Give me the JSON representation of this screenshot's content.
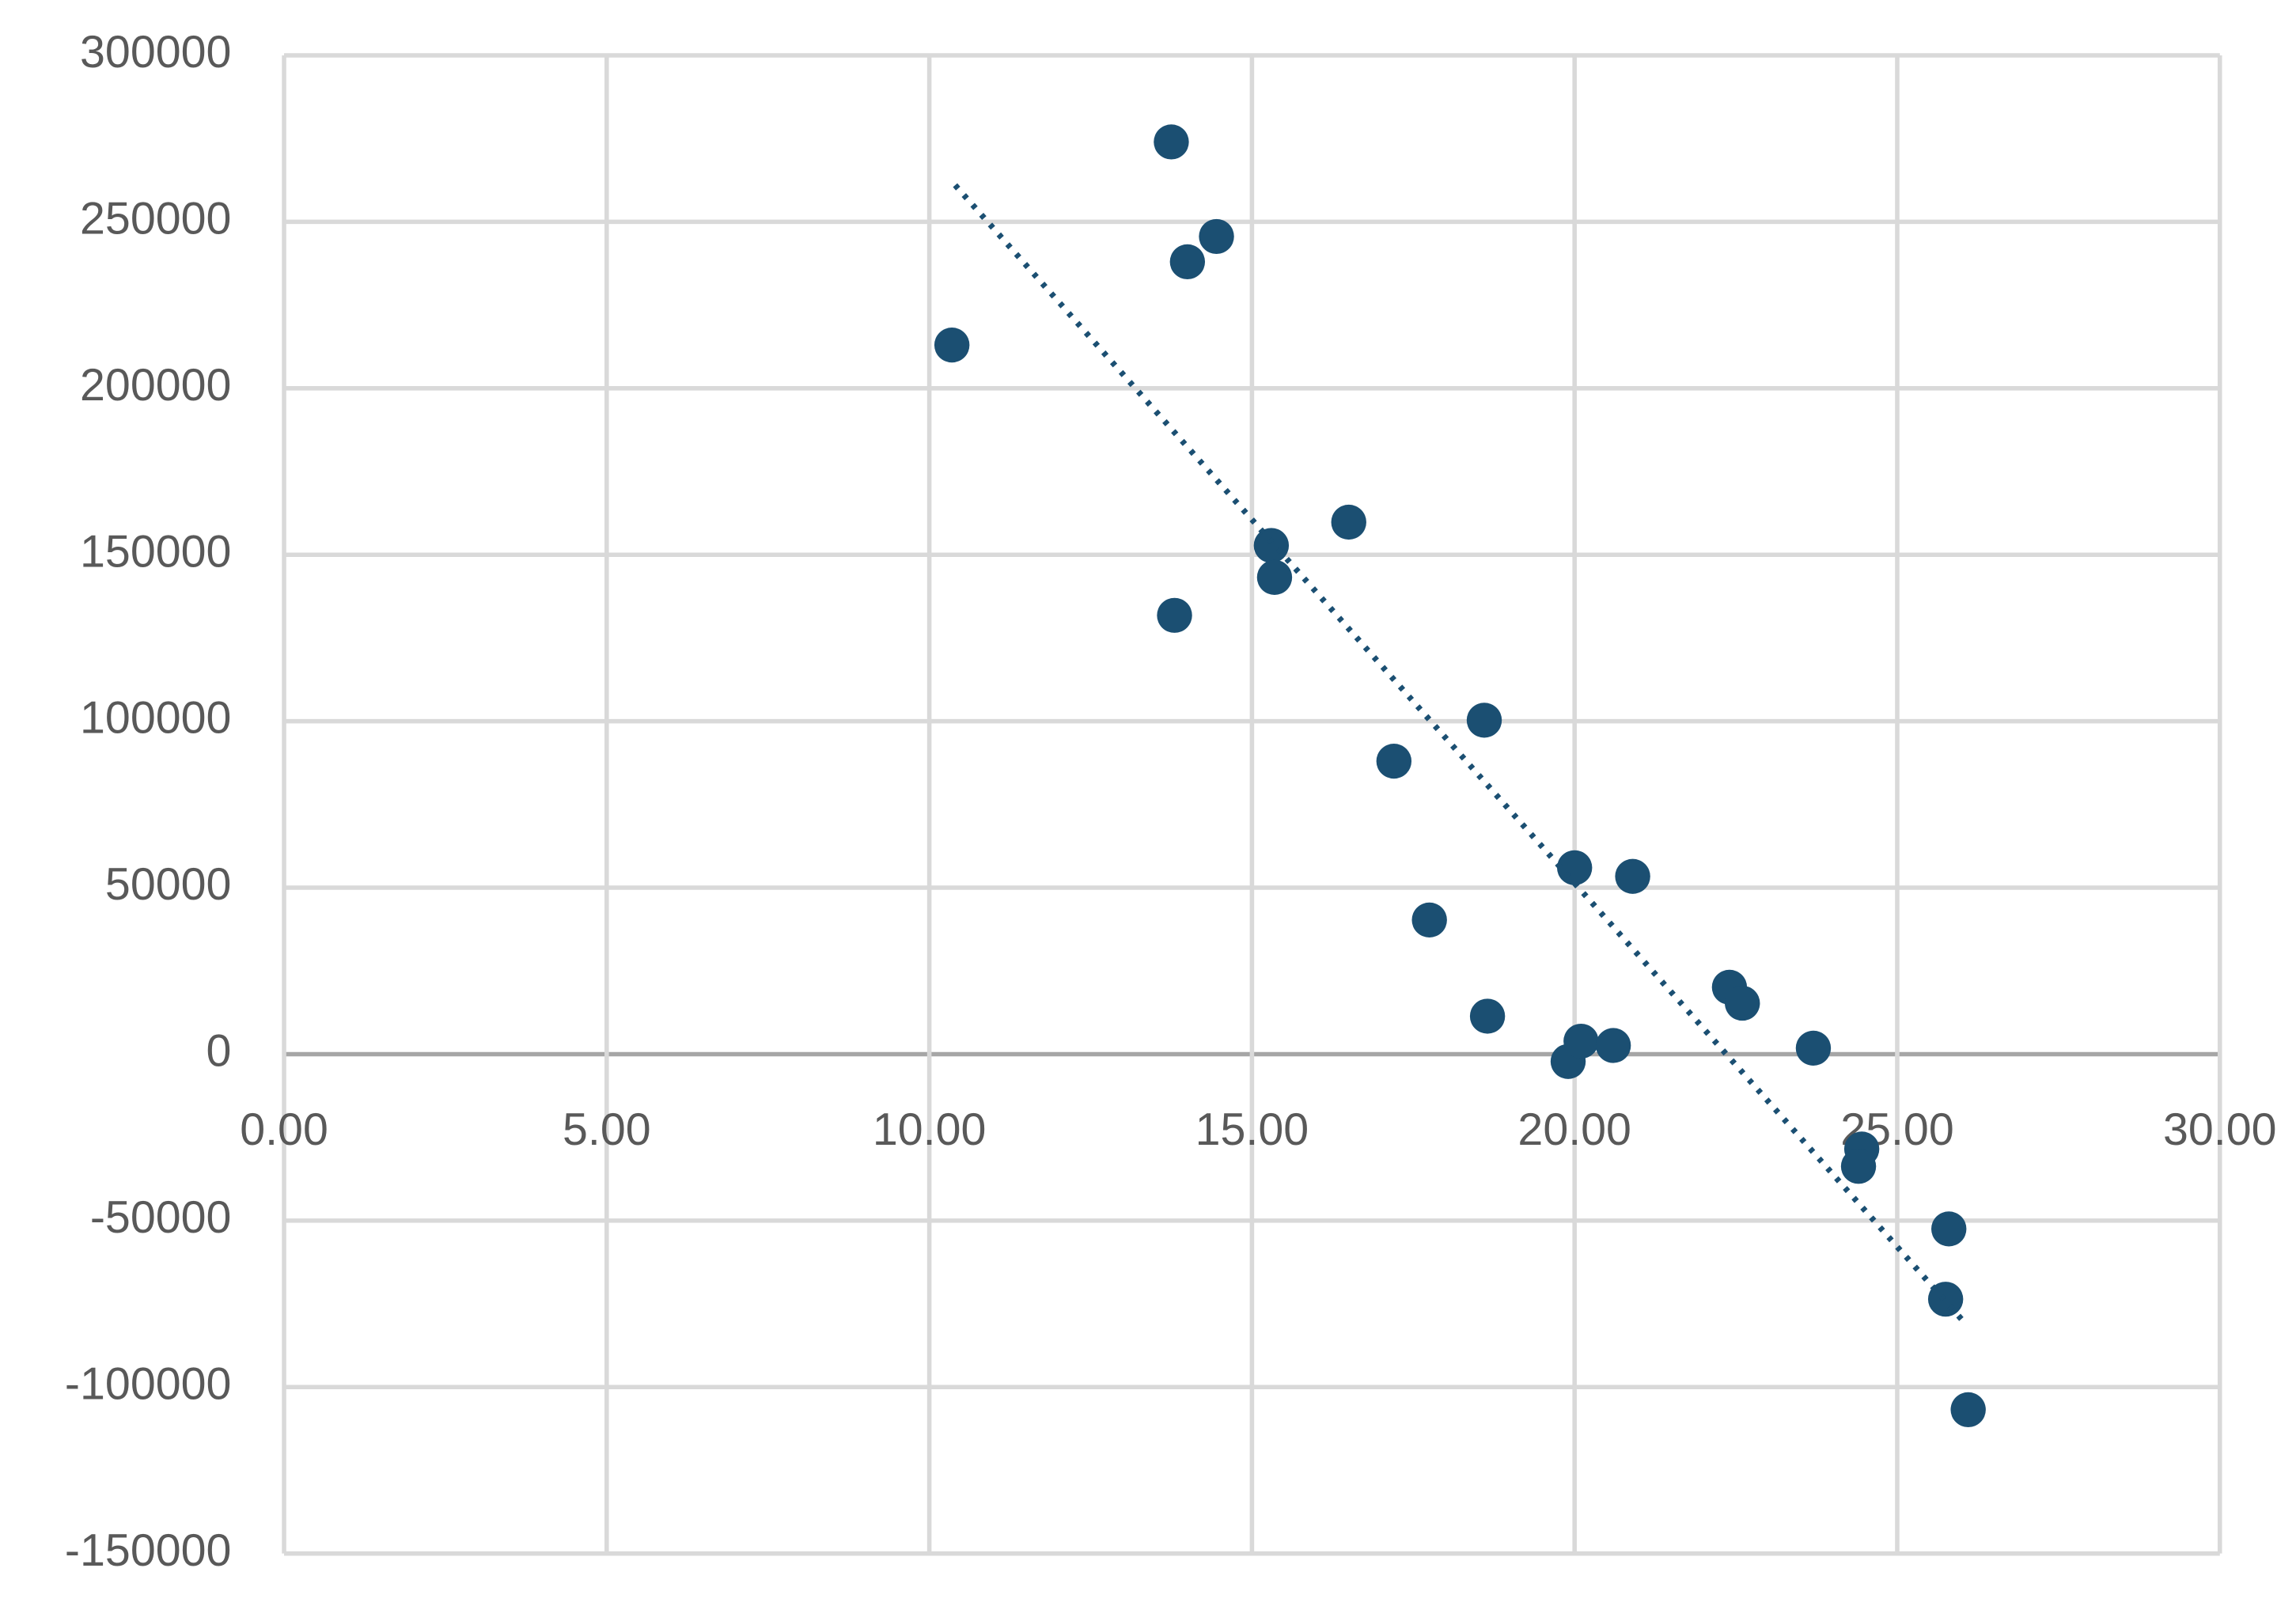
{
  "chart_data": {
    "type": "scatter",
    "x": [
      13.75,
      10.35,
      14.0,
      14.45,
      15.3,
      15.35,
      16.5,
      13.8,
      18.6,
      17.2,
      20.0,
      20.9,
      17.75,
      18.65,
      19.9,
      20.1,
      20.6,
      22.4,
      22.6,
      23.7,
      24.45,
      24.4,
      25.8,
      25.75,
      26.1
    ],
    "values": [
      274000,
      213000,
      238000,
      245600,
      152800,
      143200,
      159800,
      131800,
      100300,
      88000,
      56000,
      53400,
      40300,
      11400,
      -2200,
      3900,
      2600,
      20100,
      15300,
      1800,
      -28500,
      -33700,
      -52500,
      -73600,
      -106800
    ],
    "color": "#1b4f72",
    "trendline": {
      "x": [
        10.4,
        26.0
      ],
      "values": [
        261000,
        -79700
      ]
    },
    "xlim": [
      0,
      30
    ],
    "xticks": [
      {
        "value": 0,
        "label": "0.00"
      },
      {
        "value": 5,
        "label": "5.00"
      },
      {
        "value": 10,
        "label": "10.00"
      },
      {
        "value": 15,
        "label": "15.00"
      },
      {
        "value": 20,
        "label": "20.00"
      },
      {
        "value": 25,
        "label": "25.00"
      },
      {
        "value": 30,
        "label": "30.00"
      }
    ],
    "ylim": [
      -150000,
      300000
    ],
    "yticks": [
      -150000,
      -100000,
      -50000,
      0,
      50000,
      100000,
      150000,
      200000,
      250000,
      300000
    ],
    "grid": true
  }
}
